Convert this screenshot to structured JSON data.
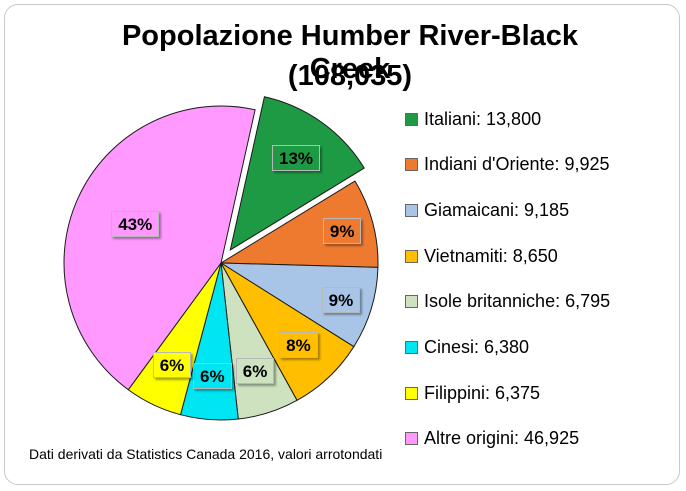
{
  "chart_data": {
    "type": "pie",
    "title": "Popolazione Humber River-Black Creek",
    "subtitle": "(108,035)",
    "slices": [
      {
        "category": "Italiani",
        "value": 13800,
        "percent_label": "13%",
        "color": "#1f9a44",
        "exploded": true
      },
      {
        "category": "Indiani d'Oriente",
        "value": 9925,
        "percent_label": "9%",
        "color": "#ee7a30",
        "exploded": false
      },
      {
        "category": "Giamaicani",
        "value": 9185,
        "percent_label": "9%",
        "color": "#a8c4e6",
        "exploded": false
      },
      {
        "category": "Vietnamiti",
        "value": 8650,
        "percent_label": "8%",
        "color": "#ffbf00",
        "exploded": false
      },
      {
        "category": "Isole britanniche",
        "value": 6795,
        "percent_label": "6%",
        "color": "#cfe2bf",
        "exploded": false
      },
      {
        "category": "Cinesi",
        "value": 6380,
        "percent_label": "6%",
        "color": "#00e5f2",
        "exploded": false
      },
      {
        "category": "Filippini",
        "value": 6375,
        "percent_label": "6%",
        "color": "#ffff00",
        "exploded": false
      },
      {
        "category": "Altre origini",
        "value": 46925,
        "percent_label": "43%",
        "color": "#ff99ff",
        "exploded": false
      }
    ],
    "legend_entries": [
      "Italiani: 13,800",
      "Indiani d'Oriente: 9,925",
      "Giamaicani: 9,185",
      "Vietnamiti: 8,650",
      "Isole britanniche: 6,795",
      "Cinesi: 6,380",
      "Filippini: 6,375",
      "Altre origini: 46,925"
    ],
    "legend_position": "right",
    "footnote": "Dati derivati da Statistics Canada 2016, valori arrotondati"
  }
}
